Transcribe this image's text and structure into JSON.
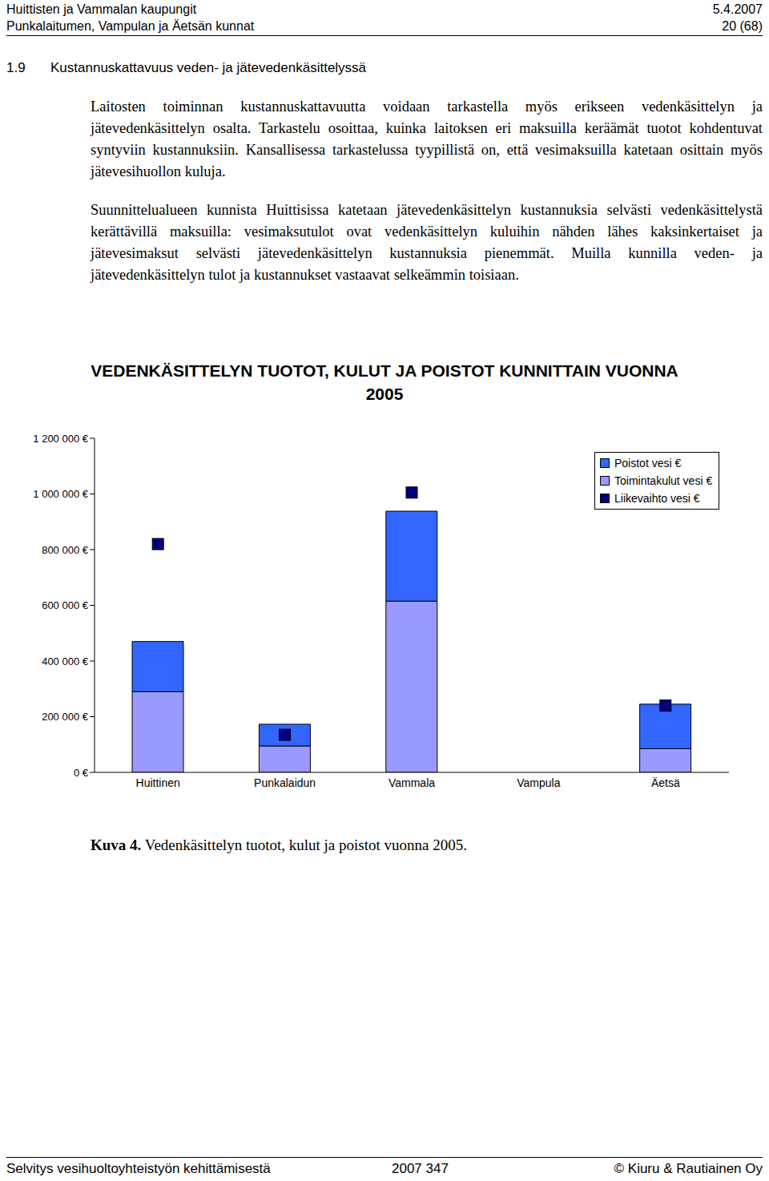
{
  "header": {
    "left": [
      "Huittisten ja Vammalan kaupungit",
      "Punkalaitumen, Vampulan ja Äetsän kunnat"
    ],
    "right": [
      "5.4.2007",
      "20 (68)"
    ]
  },
  "section": {
    "number": "1.9",
    "title": "Kustannuskattavuus veden- ja jätevedenkäsittelyssä"
  },
  "paragraphs": [
    "Laitosten toiminnan kustannuskattavuutta voidaan tarkastella myös erikseen vedenkäsittelyn ja jätevedenkäsittelyn osalta. Tarkastelu osoittaa, kuinka laitoksen eri maksuilla keräämät tuotot kohdentuvat syntyviin kustannuksiin. Kansallisessa tarkastelussa tyypillistä on, että vesimaksuilla katetaan osittain myös jätevesihuollon kuluja.",
    "Suunnittelualueen kunnista Huittisissa katetaan jätevedenkäsittelyn kustannuksia selvästi vedenkäsittelystä kerättävillä maksuilla: vesimaksutulot ovat vedenkäsittelyn kuluihin nähden lähes kaksinkertaiset ja jätevesimaksut selvästi jätevedenkäsittelyn kustannuksia pienemmät. Muilla kunnilla veden- ja jätevedenkäsittelyn tulot ja kustannukset vastaavat selkeämmin toisiaan."
  ],
  "chart_data": {
    "type": "bar",
    "title": "VEDENKÄSITTELYN TUOTOT, KULUT JA POISTOT KUNNITTAIN VUONNA 2005",
    "categories": [
      "Huittinen",
      "Punkalaidun",
      "Vammala",
      "Vampula",
      "Äetsä"
    ],
    "series": [
      {
        "name": "Poistot vesi €",
        "color": "#3366ff",
        "values": [
          180000,
          78000,
          323000,
          null,
          160000
        ]
      },
      {
        "name": "Toimintakulut vesi €",
        "color": "#9999ff",
        "values": [
          290000,
          95000,
          615000,
          null,
          85000
        ]
      },
      {
        "name": "Liikevaihto vesi €",
        "type": "scatter",
        "marker": "square",
        "color": "#000080",
        "values": [
          820000,
          135000,
          1005000,
          null,
          240000
        ]
      }
    ],
    "stacked": true,
    "grid": false,
    "legend": "upper right",
    "ylim": [
      0,
      1200000
    ],
    "yticks": [
      {
        "value": 0,
        "label": "0 €"
      },
      {
        "value": 200000,
        "label": "200 000 €"
      },
      {
        "value": 400000,
        "label": "400 000 €"
      },
      {
        "value": 600000,
        "label": "600 000 €"
      },
      {
        "value": 800000,
        "label": "800 000 €"
      },
      {
        "value": 1000000,
        "label": "1 000 000 €"
      },
      {
        "value": 1200000,
        "label": "1 200 000 €"
      }
    ]
  },
  "caption": {
    "label": "Kuva 4.",
    "text": "Vedenkäsittelyn tuotot, kulut ja poistot vuonna 2005."
  },
  "footer": {
    "left": "Selvitys vesihuoltoyhteistyön kehittämisestä",
    "center": "2007 347",
    "right": "© Kiuru & Rautiainen Oy"
  }
}
